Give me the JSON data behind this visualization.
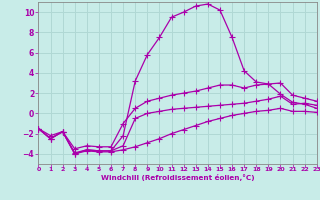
{
  "xlabel": "Windchill (Refroidissement éolien,°C)",
  "background_color": "#c8ece8",
  "grid_color": "#b0d8d4",
  "line_color": "#aa00aa",
  "spine_color": "#888888",
  "xlim": [
    0,
    23
  ],
  "ylim": [
    -5,
    11
  ],
  "xticks": [
    0,
    1,
    2,
    3,
    4,
    5,
    6,
    7,
    8,
    9,
    10,
    11,
    12,
    13,
    14,
    15,
    16,
    17,
    18,
    19,
    20,
    21,
    22,
    23
  ],
  "yticks": [
    -4,
    -2,
    0,
    2,
    4,
    6,
    8,
    10
  ],
  "line1_x": [
    0,
    1,
    2,
    3,
    4,
    5,
    6,
    7,
    8,
    9,
    10,
    11,
    12,
    13,
    14,
    15,
    16,
    17,
    18,
    19,
    20,
    21,
    22,
    23
  ],
  "line1_y": [
    -1.5,
    -2.5,
    -1.8,
    -3.9,
    -3.6,
    -3.7,
    -3.7,
    -3.2,
    -0.5,
    0.0,
    0.2,
    0.4,
    0.5,
    0.6,
    0.7,
    0.8,
    0.9,
    1.0,
    1.2,
    1.4,
    1.7,
    0.9,
    1.0,
    0.8
  ],
  "line2_x": [
    0,
    1,
    2,
    3,
    4,
    5,
    6,
    7,
    8,
    9,
    10,
    11,
    12,
    13,
    14,
    15,
    16,
    17,
    18,
    19,
    20,
    21,
    22,
    23
  ],
  "line2_y": [
    -1.5,
    -2.5,
    -1.8,
    -4.0,
    -3.6,
    -3.7,
    -3.7,
    -2.2,
    3.2,
    5.8,
    7.5,
    9.5,
    10.0,
    10.6,
    10.8,
    10.2,
    7.5,
    4.2,
    3.1,
    2.9,
    1.9,
    1.1,
    0.9,
    0.5
  ],
  "line3_x": [
    0,
    1,
    2,
    3,
    4,
    5,
    6,
    7,
    8,
    9,
    10,
    11,
    12,
    13,
    14,
    15,
    16,
    17,
    18,
    19,
    20,
    21,
    22,
    23
  ],
  "line3_y": [
    -1.5,
    -2.5,
    -1.8,
    -4.0,
    -3.7,
    -3.8,
    -3.8,
    -3.6,
    -3.3,
    -2.9,
    -2.5,
    -2.0,
    -1.6,
    -1.2,
    -0.8,
    -0.5,
    -0.2,
    0.0,
    0.2,
    0.3,
    0.5,
    0.2,
    0.2,
    0.1
  ],
  "line4_x": [
    0,
    1,
    2,
    3,
    4,
    5,
    6,
    7,
    8,
    9,
    10,
    11,
    12,
    13,
    14,
    15,
    16,
    17,
    18,
    19,
    20,
    21,
    22,
    23
  ],
  "line4_y": [
    -1.5,
    -2.2,
    -1.8,
    -3.5,
    -3.2,
    -3.3,
    -3.3,
    -1.0,
    0.5,
    1.2,
    1.5,
    1.8,
    2.0,
    2.2,
    2.5,
    2.8,
    2.8,
    2.5,
    2.8,
    2.9,
    3.0,
    1.8,
    1.5,
    1.2
  ]
}
